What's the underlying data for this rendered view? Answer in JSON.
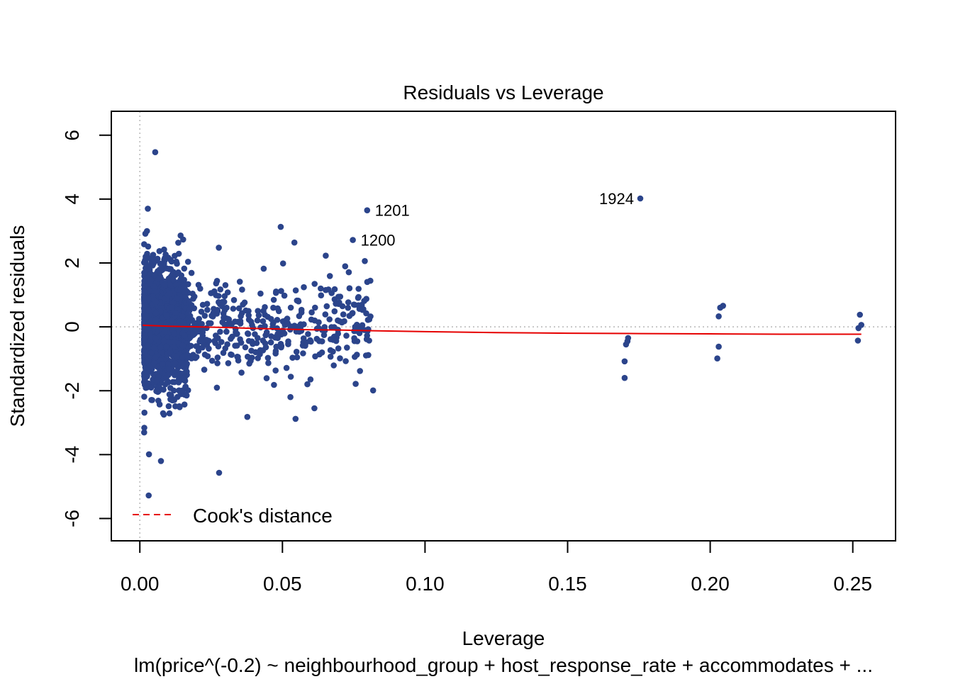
{
  "chart_data": {
    "type": "scatter",
    "title": "Residuals vs Leverage",
    "xlabel": "Leverage",
    "ylabel": "Standardized residuals",
    "subtitle": "lm(price^(-0.2) ~ neighbourhood_group + host_response_rate + accommodates + ...",
    "xlim": [
      -0.01,
      0.265
    ],
    "ylim": [
      -6.7,
      6.75
    ],
    "x_ticks": [
      {
        "value": 0.0,
        "label": "0.00"
      },
      {
        "value": 0.05,
        "label": "0.05"
      },
      {
        "value": 0.1,
        "label": "0.10"
      },
      {
        "value": 0.15,
        "label": "0.15"
      },
      {
        "value": 0.2,
        "label": "0.20"
      },
      {
        "value": 0.25,
        "label": "0.25"
      }
    ],
    "y_ticks": [
      {
        "value": -6,
        "label": "-6"
      },
      {
        "value": -4,
        "label": "-4"
      },
      {
        "value": -2,
        "label": "-2"
      },
      {
        "value": 0,
        "label": "0"
      },
      {
        "value": 2,
        "label": "2"
      },
      {
        "value": 4,
        "label": "4"
      },
      {
        "value": 6,
        "label": "6"
      }
    ],
    "point_color": "#2b448b",
    "smooth_color": "#e60000",
    "reference_line_color": "#b8b8b8",
    "legend": {
      "label": "Cook's distance",
      "position": "bottom-left",
      "line_style": "dashed",
      "color": "#e60000"
    },
    "labeled_points": [
      {
        "label": "1924",
        "x": 0.1755,
        "y": 4.02,
        "side": "left"
      },
      {
        "label": "1201",
        "x": 0.0797,
        "y": 3.65,
        "side": "right"
      },
      {
        "label": "1200",
        "x": 0.0747,
        "y": 2.72,
        "side": "right"
      }
    ],
    "notable_points": [
      {
        "x": 0.0054,
        "y": 5.47
      },
      {
        "x": 0.0028,
        "y": 3.7
      },
      {
        "x": 0.0031,
        "y": -5.28
      },
      {
        "x": 0.0278,
        "y": -4.57
      },
      {
        "x": 0.0074,
        "y": -4.2
      },
      {
        "x": 0.0032,
        "y": -3.99
      },
      {
        "x": 0.0494,
        "y": 3.13
      },
      {
        "x": 0.0542,
        "y": 2.64
      },
      {
        "x": 0.0143,
        "y": 2.86
      },
      {
        "x": 0.0818,
        "y": -1.99
      },
      {
        "x": 0.0804,
        "y": -0.43
      },
      {
        "x": 0.0546,
        "y": -2.88
      },
      {
        "x": 0.0377,
        "y": -2.82
      },
      {
        "x": 0.0612,
        "y": -2.55
      },
      {
        "x": 0.0277,
        "y": 2.48
      },
      {
        "x": 0.0652,
        "y": 2.23
      },
      {
        "x": 0.0789,
        "y": 2.06
      }
    ],
    "cluster_point_counts": {
      "dense_low_leverage": 1500,
      "mid_leverage": 420
    },
    "high_leverage_points": [
      {
        "x": 0.17,
        "y": -1.6
      },
      {
        "x": 0.17,
        "y": -1.08
      },
      {
        "x": 0.1705,
        "y": -0.55
      },
      {
        "x": 0.171,
        "y": -0.45
      },
      {
        "x": 0.1712,
        "y": -0.35
      },
      {
        "x": 0.2025,
        "y": -0.99
      },
      {
        "x": 0.203,
        "y": -0.62
      },
      {
        "x": 0.203,
        "y": 0.33
      },
      {
        "x": 0.2035,
        "y": 0.6
      },
      {
        "x": 0.2045,
        "y": 0.66
      },
      {
        "x": 0.2518,
        "y": -0.43
      },
      {
        "x": 0.252,
        "y": -0.04
      },
      {
        "x": 0.2525,
        "y": 0.38
      },
      {
        "x": 0.253,
        "y": 0.06
      }
    ],
    "smooth_line": [
      {
        "x": 0.001,
        "y": 0.05
      },
      {
        "x": 0.01,
        "y": 0.02
      },
      {
        "x": 0.02,
        "y": 0.0
      },
      {
        "x": 0.03,
        "y": -0.02
      },
      {
        "x": 0.04,
        "y": -0.05
      },
      {
        "x": 0.05,
        "y": -0.07
      },
      {
        "x": 0.06,
        "y": -0.09
      },
      {
        "x": 0.07,
        "y": -0.1
      },
      {
        "x": 0.08,
        "y": -0.12
      },
      {
        "x": 0.1,
        "y": -0.15
      },
      {
        "x": 0.125,
        "y": -0.18
      },
      {
        "x": 0.15,
        "y": -0.2
      },
      {
        "x": 0.175,
        "y": -0.21
      },
      {
        "x": 0.2,
        "y": -0.22
      },
      {
        "x": 0.225,
        "y": -0.23
      },
      {
        "x": 0.253,
        "y": -0.23
      }
    ],
    "grid": false
  }
}
